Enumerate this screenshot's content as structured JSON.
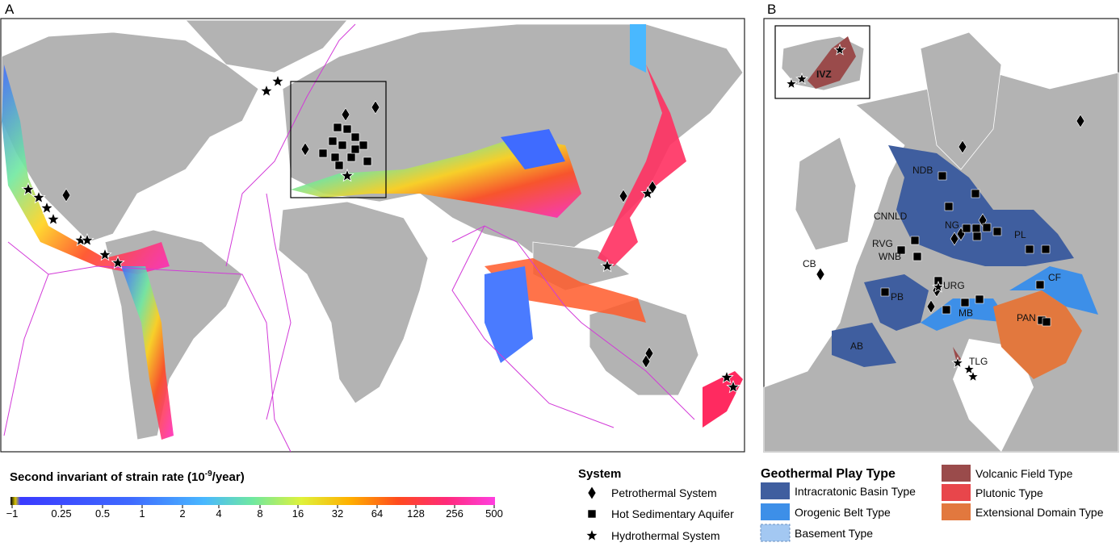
{
  "panel_a": {
    "label": "A"
  },
  "panel_b": {
    "label": "B",
    "region_labels": [
      "NDB",
      "CNNLD",
      "NG",
      "PL",
      "RVG",
      "WNB",
      "CB",
      "PB",
      "URG",
      "CF",
      "MB",
      "PAN",
      "AB",
      "TLG",
      "IVZ"
    ]
  },
  "colorbar": {
    "title": "Second invariant of strain rate (10",
    "exponent": "-9",
    "unit": "/year)",
    "ticks": [
      "−1",
      "0.25",
      "0.5",
      "1",
      "2",
      "4",
      "8",
      "16",
      "32",
      "64",
      "128",
      "256",
      "500"
    ]
  },
  "system_legend": {
    "title": "System",
    "items": [
      "Petrothermal System",
      "Hot Sedimentary Aquifer",
      "Hydrothermal System"
    ]
  },
  "play_legend": {
    "title": "Geothermal Play Type",
    "items": [
      {
        "label": "Intracratonic Basin Type",
        "color": "#3f5e9f"
      },
      {
        "label": "Orogenic Belt Type",
        "color": "#3d8fe8"
      },
      {
        "label": "Basement Type",
        "color": "#a3c8f2"
      },
      {
        "label": "Volcanic Field Type",
        "color": "#9a4b4b"
      },
      {
        "label": "Plutonic Type",
        "color": "#e8464b"
      },
      {
        "label": "Extensional Domain Type",
        "color": "#e2783e"
      }
    ]
  }
}
